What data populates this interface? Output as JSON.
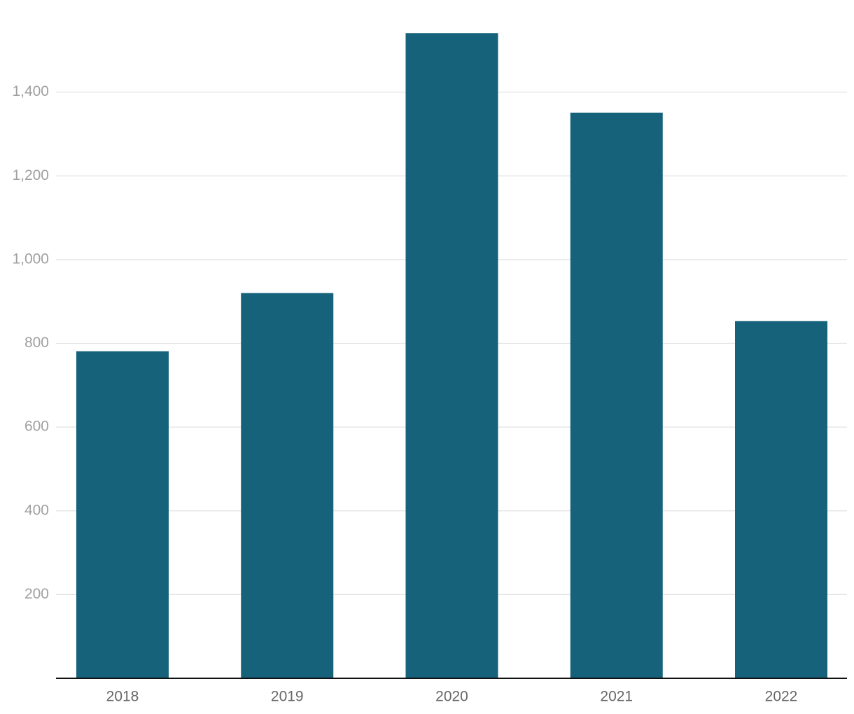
{
  "chart_data": {
    "type": "bar",
    "categories": [
      "2018",
      "2019",
      "2020",
      "2021",
      "2022"
    ],
    "values": [
      781,
      920,
      1541,
      1351,
      853
    ],
    "color": "#17627b",
    "ylim": [
      0,
      1620
    ],
    "yticks": [
      200,
      400,
      600,
      800,
      {
        "value": 1000,
        "label": "1,000"
      },
      {
        "value": 1200,
        "label": "1,200"
      },
      {
        "value": 1400,
        "label": "1,400"
      }
    ],
    "grid": true
  }
}
